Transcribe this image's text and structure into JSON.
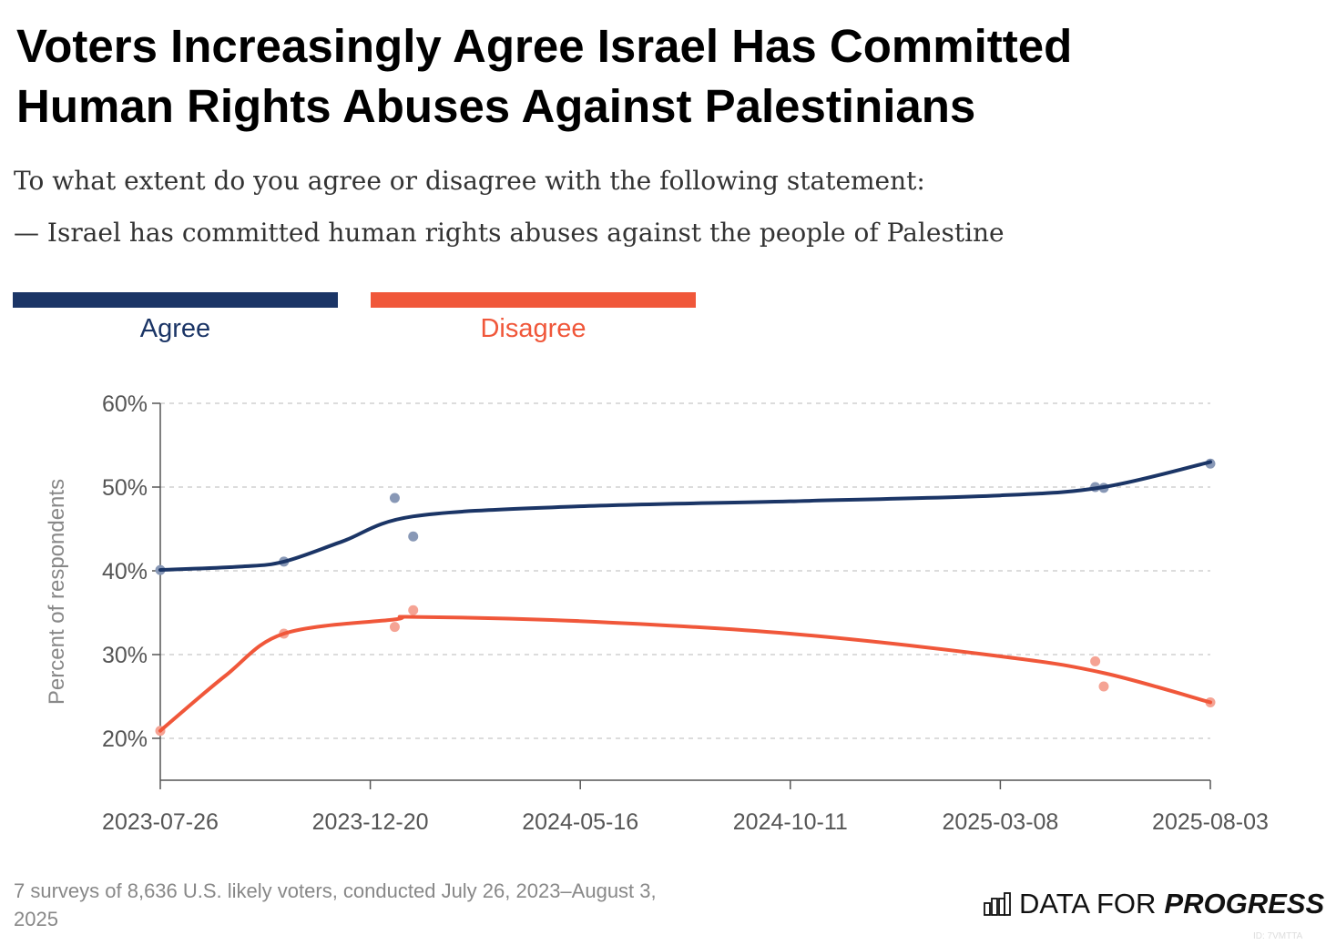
{
  "title_line1": "Voters Increasingly Agree Israel Has Committed",
  "title_line2": "Human Rights Abuses Against Palestinians",
  "subtitle_line1": "To what extent do you agree or disagree with the following statement:",
  "subtitle_line2": "— Israel has committed human rights abuses against the people of Palestine",
  "footnote": "7 surveys of 8,636 U.S. likely voters, conducted July 26, 2023–August 3, 2025",
  "logo": {
    "icon": "bar-chart-icon",
    "text_light": "DATA FOR",
    "text_bold": "PROGRESS"
  },
  "chart_id": "ID: 7VMTTA",
  "chart_data": {
    "type": "line",
    "ylabel": "Percent of respondents",
    "ylim": [
      15,
      60
    ],
    "yticks": [
      20,
      30,
      40,
      50,
      60
    ],
    "ytick_labels": [
      "20%",
      "30%",
      "40%",
      "50%",
      "60%"
    ],
    "x_start": "2023-07-26",
    "x_end": "2025-08-03",
    "xtick_labels": [
      "2023-07-26",
      "2023-12-20",
      "2024-05-16",
      "2024-10-11",
      "2025-03-08",
      "2025-08-03"
    ],
    "grid": true,
    "legend_position": "top-left",
    "series": [
      {
        "name": "Agree",
        "color": "#1b3566",
        "point_color": "#8898b6",
        "points": [
          [
            "2023-07-26",
            40.1
          ],
          [
            "2023-10-21",
            41.1
          ],
          [
            "2024-01-07",
            48.7
          ],
          [
            "2024-01-20",
            44.1
          ],
          [
            "2025-05-14",
            50.0
          ],
          [
            "2025-05-20",
            49.9
          ],
          [
            "2025-08-03",
            52.8
          ]
        ],
        "trend": [
          [
            "2023-07-26",
            40.1
          ],
          [
            "2023-09-20",
            40.5
          ],
          [
            "2023-10-21",
            41.1
          ],
          [
            "2023-12-01",
            43.5
          ],
          [
            "2024-01-20",
            46.5
          ],
          [
            "2024-05-16",
            47.7
          ],
          [
            "2024-10-11",
            48.3
          ],
          [
            "2025-03-08",
            49.0
          ],
          [
            "2025-05-20",
            50.0
          ],
          [
            "2025-08-03",
            53.0
          ]
        ]
      },
      {
        "name": "Disagree",
        "color": "#f0573a",
        "point_color": "#f5a394",
        "points": [
          [
            "2023-07-26",
            20.9
          ],
          [
            "2023-10-21",
            32.5
          ],
          [
            "2024-01-07",
            33.3
          ],
          [
            "2024-01-20",
            35.3
          ],
          [
            "2025-05-14",
            29.2
          ],
          [
            "2025-05-20",
            26.2
          ],
          [
            "2025-08-03",
            24.3
          ]
        ],
        "trend": [
          [
            "2023-07-26",
            20.9
          ],
          [
            "2023-09-10",
            27.5
          ],
          [
            "2023-10-21",
            32.5
          ],
          [
            "2024-01-07",
            34.2
          ],
          [
            "2024-01-20",
            34.5
          ],
          [
            "2024-05-16",
            34.0
          ],
          [
            "2024-10-11",
            32.5
          ],
          [
            "2025-03-08",
            29.8
          ],
          [
            "2025-05-20",
            27.8
          ],
          [
            "2025-08-03",
            24.3
          ]
        ]
      }
    ]
  }
}
